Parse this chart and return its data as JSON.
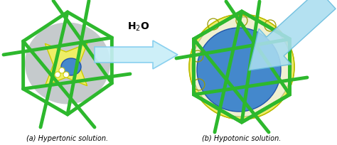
{
  "fig_width": 4.74,
  "fig_height": 2.05,
  "dpi": 100,
  "bg_color": "#ffffff",
  "label_a": "(a) Hypertonic solution.",
  "label_b": "(b) Hypotonic solution.",
  "label_fontsize": 7.0,
  "label_style": "italic",
  "h2o_fontsize": 10,
  "green": "#2db82d",
  "gray_fill": "#c5cacc",
  "yellow_fill": "#eeee66",
  "blue_fill": "#4488cc",
  "arrow_fill": "#aaddee",
  "arrow_edge": "#55bbcc"
}
